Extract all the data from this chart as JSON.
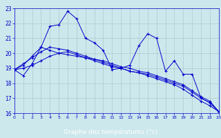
{
  "title": "Graphe des températures (°c)",
  "plot_bg_color": "#cce8ec",
  "fig_bg_color": "#cce8ec",
  "xlabel_bg_color": "#0000aa",
  "line_color": "#0000cc",
  "grid_color": "#b0c8cc",
  "xlim": [
    0,
    23
  ],
  "ylim": [
    16,
    23
  ],
  "x_ticks": [
    0,
    1,
    2,
    3,
    4,
    5,
    6,
    7,
    8,
    9,
    10,
    11,
    12,
    13,
    14,
    15,
    16,
    17,
    18,
    19,
    20,
    21,
    22,
    23
  ],
  "y_ticks": [
    16,
    17,
    18,
    19,
    20,
    21,
    22,
    23
  ],
  "series": [
    [
      18.9,
      18.5,
      19.3,
      20.4,
      21.8,
      21.9,
      22.8,
      22.3,
      21.0,
      20.7,
      20.2,
      18.9,
      19.0,
      19.2,
      20.5,
      21.3,
      21.0,
      18.8,
      19.5,
      18.6,
      18.6,
      17.0,
      16.7,
      16.1
    ],
    [
      18.9,
      19.2,
      19.8,
      20.4,
      20.2,
      20.0,
      19.9,
      19.8,
      19.7,
      19.6,
      19.5,
      19.3,
      19.1,
      19.0,
      18.8,
      18.7,
      18.5,
      18.3,
      18.1,
      17.9,
      17.5,
      17.1,
      16.8,
      16.1
    ],
    [
      18.9,
      19.0,
      19.2,
      19.5,
      19.8,
      20.0,
      20.1,
      19.9,
      19.7,
      19.5,
      19.3,
      19.1,
      19.0,
      18.8,
      18.7,
      18.6,
      18.4,
      18.2,
      18.0,
      17.8,
      17.4,
      17.0,
      16.7,
      16.1
    ],
    [
      18.9,
      19.3,
      19.7,
      20.1,
      20.4,
      20.3,
      20.2,
      20.0,
      19.8,
      19.6,
      19.4,
      19.2,
      19.0,
      18.8,
      18.7,
      18.5,
      18.3,
      18.1,
      17.9,
      17.6,
      17.2,
      16.8,
      16.5,
      16.1
    ]
  ]
}
